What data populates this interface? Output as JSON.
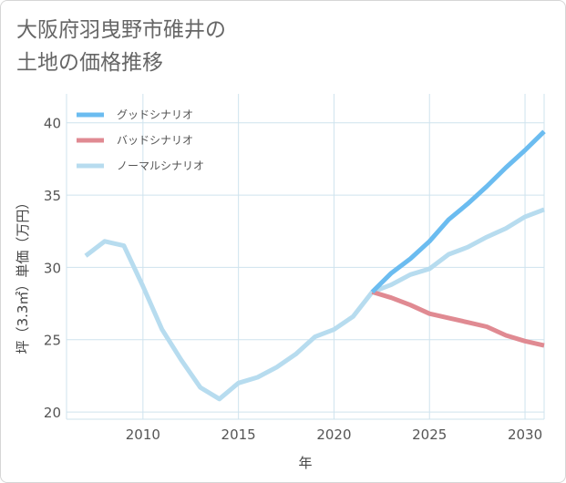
{
  "title_line1": "大阪府羽曳野市碓井の",
  "title_line2": "土地の価格推移",
  "chart_data": {
    "type": "line",
    "xlabel": "年",
    "ylabel": "坪（3.3㎡）単価（万円）",
    "xlim": [
      2006,
      2031
    ],
    "ylim": [
      19.5,
      42
    ],
    "x_ticks": [
      2010,
      2015,
      2020,
      2025,
      2030
    ],
    "y_ticks": [
      20,
      25,
      30,
      35,
      40
    ],
    "grid": true,
    "legend_position": "top-left",
    "series": [
      {
        "name": "グッドシナリオ",
        "color": "#6bbcf0",
        "x": [
          2022,
          2023,
          2024,
          2025,
          2026,
          2027,
          2028,
          2029,
          2030,
          2031
        ],
        "y": [
          28.3,
          29.6,
          30.6,
          31.8,
          33.3,
          34.4,
          35.6,
          36.9,
          38.1,
          39.4
        ]
      },
      {
        "name": "バッドシナリオ",
        "color": "#e08a92",
        "x": [
          2022,
          2023,
          2024,
          2025,
          2026,
          2027,
          2028,
          2029,
          2030,
          2031
        ],
        "y": [
          28.3,
          27.9,
          27.4,
          26.8,
          26.5,
          26.2,
          25.9,
          25.3,
          24.9,
          24.6
        ]
      },
      {
        "name": "ノーマルシナリオ",
        "color": "#b7dcef",
        "x": [
          2007,
          2008,
          2009,
          2010,
          2011,
          2012,
          2013,
          2014,
          2015,
          2016,
          2017,
          2018,
          2019,
          2020,
          2021,
          2022,
          2023,
          2024,
          2025,
          2026,
          2027,
          2028,
          2029,
          2030,
          2031
        ],
        "y": [
          30.8,
          31.8,
          31.5,
          28.7,
          25.7,
          23.6,
          21.7,
          20.9,
          22.0,
          22.4,
          23.1,
          24.0,
          25.2,
          25.7,
          26.6,
          28.3,
          28.8,
          29.5,
          29.9,
          30.9,
          31.4,
          32.1,
          32.7,
          33.5,
          34.0
        ]
      }
    ]
  }
}
